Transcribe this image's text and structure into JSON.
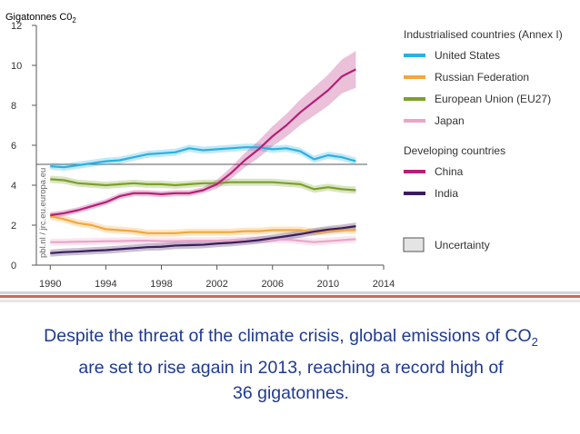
{
  "chart_data": {
    "type": "line",
    "ylabel_prefix": "Gigatonnes C0",
    "ylabel_subscript": "2",
    "ylim": [
      0,
      12
    ],
    "yticks": [
      "0",
      "2",
      "4",
      "6",
      "8",
      "10",
      "12"
    ],
    "xlim": [
      1989,
      2014
    ],
    "xticks": [
      "1990",
      "1994",
      "1998",
      "2002",
      "2006",
      "2010",
      "2014"
    ],
    "x": [
      1990,
      1991,
      1992,
      1993,
      1994,
      1995,
      1996,
      1997,
      1998,
      1999,
      2000,
      2001,
      2002,
      2003,
      2004,
      2005,
      2006,
      2007,
      2008,
      2009,
      2010,
      2011,
      2012
    ],
    "source_label": "pbl.nl / jrc.eu.europa.eu",
    "legend_groups": [
      {
        "heading": "Industrialised countries (Annex I)",
        "entries": [
          "United States",
          "Russian Federation",
          "European Union (EU27)",
          "Japan"
        ]
      },
      {
        "heading": "Developing countries",
        "entries": [
          "China",
          "India"
        ]
      }
    ],
    "uncertainty_label": "Uncertainty",
    "series": [
      {
        "name": "United States",
        "color": "#29b0e3",
        "values": [
          4.95,
          4.9,
          5.0,
          5.1,
          5.2,
          5.25,
          5.4,
          5.55,
          5.6,
          5.65,
          5.85,
          5.75,
          5.8,
          5.85,
          5.9,
          5.9,
          5.8,
          5.85,
          5.7,
          5.3,
          5.5,
          5.4,
          5.2
        ]
      },
      {
        "name": "Russian Federation",
        "color": "#f3a73a",
        "values": [
          2.45,
          2.3,
          2.1,
          2.0,
          1.8,
          1.75,
          1.7,
          1.6,
          1.6,
          1.6,
          1.65,
          1.65,
          1.65,
          1.65,
          1.7,
          1.7,
          1.75,
          1.75,
          1.75,
          1.65,
          1.7,
          1.75,
          1.75
        ]
      },
      {
        "name": "European Union (EU27)",
        "color": "#7ba02a",
        "values": [
          4.3,
          4.25,
          4.1,
          4.05,
          4.0,
          4.05,
          4.1,
          4.05,
          4.05,
          4.0,
          4.05,
          4.1,
          4.1,
          4.15,
          4.15,
          4.15,
          4.15,
          4.1,
          4.05,
          3.8,
          3.9,
          3.8,
          3.75
        ]
      },
      {
        "name": "Japan",
        "color": "#e9a6c9",
        "values": [
          1.15,
          1.15,
          1.17,
          1.18,
          1.2,
          1.2,
          1.22,
          1.22,
          1.2,
          1.2,
          1.22,
          1.22,
          1.22,
          1.25,
          1.25,
          1.28,
          1.28,
          1.28,
          1.22,
          1.15,
          1.2,
          1.25,
          1.3
        ]
      },
      {
        "name": "China",
        "color": "#b51f78",
        "values": [
          2.5,
          2.6,
          2.75,
          2.95,
          3.15,
          3.45,
          3.6,
          3.6,
          3.55,
          3.6,
          3.6,
          3.75,
          4.05,
          4.6,
          5.25,
          5.8,
          6.45,
          7.0,
          7.65,
          8.2,
          8.75,
          9.45,
          9.8
        ]
      },
      {
        "name": "India",
        "color": "#3b1d5c",
        "values": [
          0.6,
          0.65,
          0.68,
          0.72,
          0.75,
          0.8,
          0.85,
          0.9,
          0.92,
          0.98,
          1.0,
          1.02,
          1.08,
          1.12,
          1.18,
          1.25,
          1.35,
          1.45,
          1.55,
          1.68,
          1.78,
          1.85,
          1.95
        ]
      }
    ]
  },
  "caption": {
    "line1_pre": "Despite the threat of the climate crisis, global emissions of CO",
    "line1_sub": "2",
    "line2": "are set to rise again in 2013, reaching  a record high of",
    "line3": "36 gigatonnes."
  }
}
